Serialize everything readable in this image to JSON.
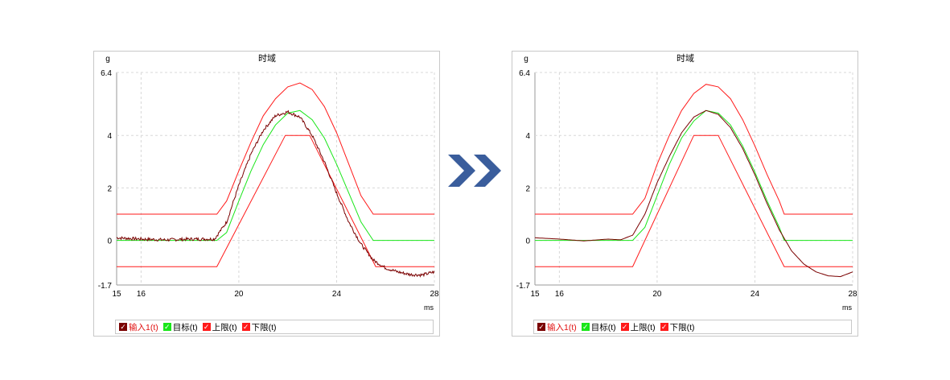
{
  "chart_data": [
    {
      "type": "line",
      "title": "时域",
      "ylabel": "g",
      "xlabel": "ms",
      "xlim": [
        15,
        28
      ],
      "ylim": [
        -1.7,
        6.4
      ],
      "xticks": [
        "15",
        "16",
        "20",
        "24",
        "28"
      ],
      "yticks": [
        "6.4",
        "4",
        "2",
        "0",
        "-1.7"
      ],
      "grid": true,
      "legend_position": "bottom",
      "series": [
        {
          "name": "输入1(t)",
          "color": "#7a0000",
          "checked": true,
          "noisy": true,
          "x": [
            15,
            16,
            17,
            18,
            19,
            19.5,
            20,
            20.5,
            21,
            21.5,
            22,
            22.5,
            23,
            23.5,
            24,
            24.5,
            25,
            25.5,
            26,
            26.5,
            27,
            27.5,
            28
          ],
          "y": [
            0.1,
            0.05,
            0.02,
            0.05,
            0.05,
            0.7,
            2.1,
            3.3,
            4.2,
            4.75,
            4.9,
            4.7,
            4.0,
            3.0,
            1.8,
            0.7,
            -0.15,
            -0.75,
            -1.05,
            -1.2,
            -1.3,
            -1.32,
            -1.2
          ]
        },
        {
          "name": "目标(t)",
          "color": "#19e619",
          "checked": true,
          "x": [
            15,
            19.1,
            19.5,
            20,
            20.5,
            21,
            21.5,
            22,
            22.5,
            23,
            23.5,
            24,
            24.5,
            25,
            25.5,
            28
          ],
          "y": [
            0,
            0,
            0.3,
            1.5,
            2.65,
            3.65,
            4.4,
            4.85,
            4.95,
            4.6,
            3.9,
            2.9,
            1.8,
            0.7,
            0,
            0
          ]
        },
        {
          "name": "上限(t)",
          "color": "#ff1a1a",
          "checked": true,
          "x": [
            15,
            19.1,
            19.5,
            20,
            20.5,
            21,
            21.5,
            22,
            22.5,
            23,
            23.5,
            24,
            24.5,
            25,
            25.5,
            28
          ],
          "y": [
            1,
            1,
            1.5,
            2.65,
            3.75,
            4.75,
            5.4,
            5.85,
            6.0,
            5.75,
            5.1,
            4.1,
            2.9,
            1.7,
            1,
            1
          ]
        },
        {
          "name": "下限(t)",
          "color": "#ff1a1a",
          "checked": true,
          "x": [
            15,
            19.1,
            21.9,
            22.9,
            25.6,
            28
          ],
          "y": [
            -1,
            -1,
            4,
            4,
            -1,
            -1
          ]
        }
      ]
    },
    {
      "type": "line",
      "title": "时域",
      "ylabel": "g",
      "xlabel": "ms",
      "xlim": [
        15,
        28
      ],
      "ylim": [
        -1.7,
        6.4
      ],
      "xticks": [
        "15",
        "16",
        "20",
        "24",
        "28"
      ],
      "yticks": [
        "6.4",
        "4",
        "2",
        "0",
        "-1.7"
      ],
      "grid": true,
      "legend_position": "bottom",
      "series": [
        {
          "name": "输入1(t)",
          "color": "#7a0000",
          "checked": true,
          "noisy": false,
          "x": [
            15,
            16,
            17,
            18,
            18.5,
            19,
            19.5,
            20,
            20.5,
            21,
            21.5,
            22,
            22.5,
            23,
            23.5,
            24,
            24.5,
            25,
            25.5,
            26,
            26.5,
            27,
            27.5,
            28
          ],
          "y": [
            0.1,
            0.05,
            -0.02,
            0.05,
            0.02,
            0.2,
            1.0,
            2.2,
            3.2,
            4.1,
            4.7,
            4.95,
            4.8,
            4.3,
            3.5,
            2.5,
            1.4,
            0.4,
            -0.4,
            -0.9,
            -1.2,
            -1.35,
            -1.38,
            -1.2
          ]
        },
        {
          "name": "目标(t)",
          "color": "#19e619",
          "checked": true,
          "x": [
            15,
            19.0,
            19.5,
            20,
            20.5,
            21,
            21.5,
            22,
            22.5,
            23,
            23.5,
            24,
            24.5,
            25,
            25.2,
            28
          ],
          "y": [
            0,
            0,
            0.5,
            1.7,
            2.9,
            3.9,
            4.55,
            4.95,
            4.85,
            4.4,
            3.6,
            2.6,
            1.5,
            0.5,
            0,
            0
          ]
        },
        {
          "name": "上限(t)",
          "color": "#ff1a1a",
          "checked": true,
          "x": [
            15,
            19.0,
            19.5,
            20,
            20.5,
            21,
            21.5,
            22,
            22.5,
            23,
            23.5,
            24,
            24.5,
            25,
            25.2,
            28
          ],
          "y": [
            1,
            1,
            1.6,
            2.9,
            4.0,
            4.95,
            5.6,
            5.95,
            5.85,
            5.4,
            4.6,
            3.6,
            2.5,
            1.5,
            1,
            1
          ]
        },
        {
          "name": "下限(t)",
          "color": "#ff1a1a",
          "checked": true,
          "x": [
            15,
            19.0,
            21.5,
            22.5,
            25.2,
            28
          ],
          "y": [
            -1,
            -1,
            4,
            4,
            -1,
            -1
          ]
        }
      ]
    }
  ],
  "divider_arrow": {
    "icon": "double-chevron-right-icon",
    "color": "#3a5d9c"
  }
}
